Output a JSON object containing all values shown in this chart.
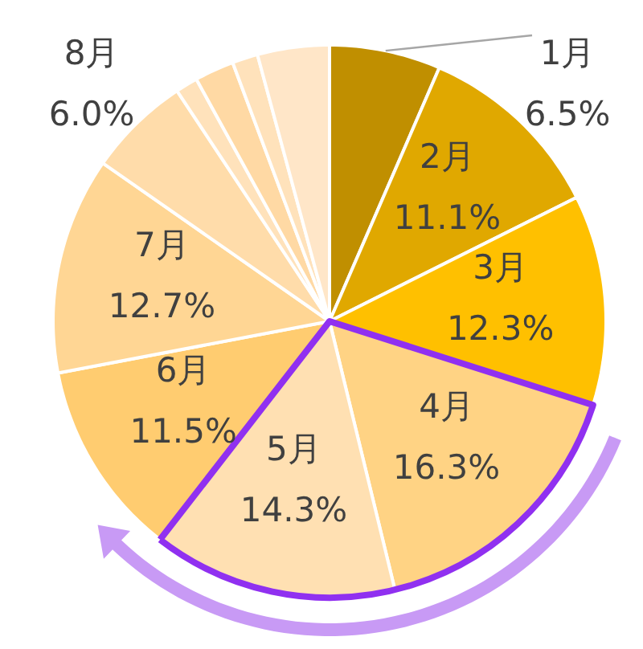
{
  "chart_data": {
    "type": "pie",
    "categories": [
      "1月",
      "2月",
      "3月",
      "4月",
      "5月",
      "6月",
      "7月",
      "8月",
      null,
      null,
      null,
      null
    ],
    "values": [
      6.5,
      11.1,
      12.3,
      16.3,
      14.3,
      11.5,
      12.7,
      6.0,
      1.3,
      2.3,
      1.5,
      4.2
    ],
    "colors": [
      "#c08f00",
      "#e0a800",
      "#ffc000",
      "#ffd384",
      "#ffe0b2",
      "#ffcc70",
      "#ffd694",
      "#ffdcaa",
      "#ffe2bb",
      "#ffd9a4",
      "#ffe2bb",
      "#ffe6c8"
    ],
    "value_labels": [
      "6.5%",
      "11.1%",
      "12.3%",
      "16.3%",
      "14.3%",
      "11.5%",
      "12.7%",
      "6.0%",
      null,
      null,
      null,
      null
    ]
  }
}
